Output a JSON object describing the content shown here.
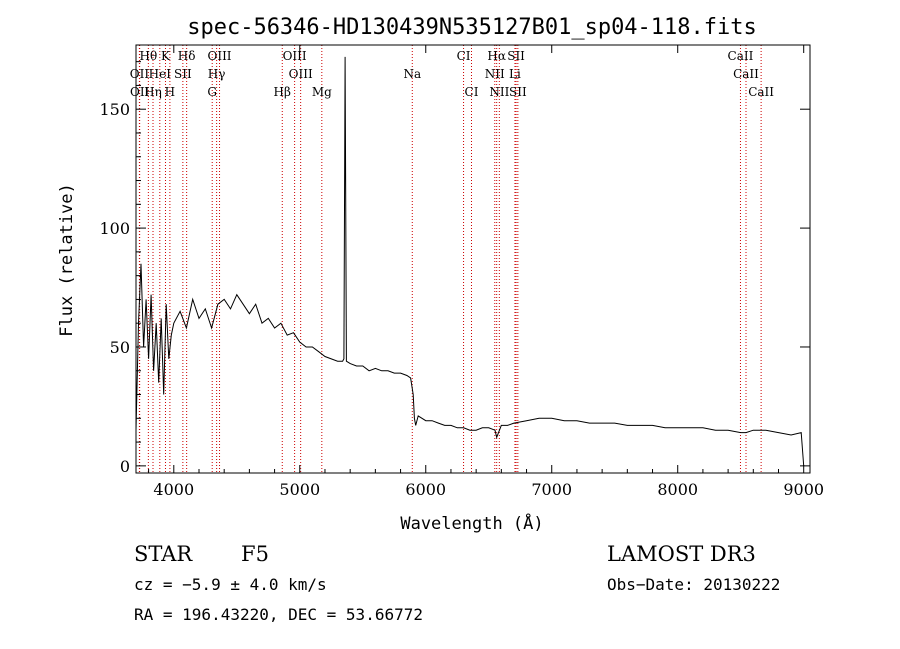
{
  "chart_data": {
    "type": "line",
    "title": "spec-56346-HD130439N535127B01_sp04-118.fits",
    "xlabel": "Wavelength (Å)",
    "ylabel": "Flux (relative)",
    "xlim": [
      3700,
      9050
    ],
    "ylim": [
      -3,
      177
    ],
    "x_ticks": [
      4000,
      5000,
      6000,
      7000,
      8000,
      9000
    ],
    "y_ticks": [
      0,
      50,
      100,
      150
    ],
    "grid": false,
    "series": [
      {
        "x": [
          3700,
          3720,
          3740,
          3760,
          3780,
          3800,
          3820,
          3840,
          3860,
          3880,
          3900,
          3920,
          3940,
          3960,
          3980,
          4000,
          4050,
          4100,
          4150,
          4200,
          4250,
          4300,
          4350,
          4400,
          4450,
          4500,
          4550,
          4600,
          4650,
          4700,
          4750,
          4800,
          4850,
          4900,
          4950,
          5000,
          5050,
          5100,
          5150,
          5200,
          5250,
          5300,
          5340,
          5350,
          5360,
          5370,
          5400,
          5450,
          5500,
          5550,
          5600,
          5650,
          5700,
          5750,
          5800,
          5850,
          5880,
          5900,
          5910,
          5920,
          5940,
          6000,
          6050,
          6100,
          6150,
          6200,
          6250,
          6300,
          6350,
          6400,
          6450,
          6500,
          6550,
          6563,
          6600,
          6650,
          6700,
          6800,
          6900,
          7000,
          7100,
          7200,
          7300,
          7400,
          7500,
          7600,
          7700,
          7800,
          7900,
          8000,
          8100,
          8200,
          8300,
          8400,
          8500,
          8542,
          8600,
          8700,
          8800,
          8900,
          8980,
          9000
        ],
        "y": [
          15,
          60,
          85,
          50,
          70,
          45,
          72,
          40,
          60,
          35,
          62,
          30,
          68,
          45,
          55,
          60,
          65,
          58,
          70,
          62,
          66,
          58,
          68,
          70,
          66,
          72,
          68,
          64,
          68,
          60,
          62,
          58,
          60,
          55,
          56,
          52,
          50,
          50,
          48,
          46,
          45,
          44,
          44,
          45,
          172,
          44,
          43,
          42,
          42,
          40,
          41,
          40,
          40,
          39,
          39,
          38,
          37,
          30,
          20,
          17,
          21,
          19,
          19,
          18,
          17,
          17,
          16,
          16,
          15,
          15,
          16,
          16,
          15,
          12,
          17,
          17,
          18,
          19,
          20,
          20,
          19,
          19,
          18,
          18,
          18,
          17,
          17,
          17,
          16,
          16,
          16,
          16,
          15,
          15,
          14,
          14,
          15,
          15,
          14,
          13,
          14,
          0
        ]
      }
    ],
    "line_labels": [
      {
        "name": "Hθ",
        "x": 3798,
        "row": 0
      },
      {
        "name": "K",
        "x": 3934,
        "row": 0
      },
      {
        "name": "Hδ",
        "x": 4102,
        "row": 0
      },
      {
        "name": "OIII",
        "x": 4363,
        "row": 0
      },
      {
        "name": "OIII",
        "x": 4959,
        "row": 0
      },
      {
        "name": "CI",
        "x": 6300,
        "row": 0
      },
      {
        "name": "Hα",
        "x": 6563,
        "row": 0
      },
      {
        "name": "SII",
        "x": 6717,
        "row": 0
      },
      {
        "name": "CaII",
        "x": 8498,
        "row": 0
      },
      {
        "name": "OII",
        "x": 3727,
        "row": 1
      },
      {
        "name": "HeI",
        "x": 3889,
        "row": 1
      },
      {
        "name": "SII",
        "x": 4072,
        "row": 1
      },
      {
        "name": "Hγ",
        "x": 4340,
        "row": 1
      },
      {
        "name": "OIII",
        "x": 5007,
        "row": 1
      },
      {
        "name": "Na",
        "x": 5893,
        "row": 1
      },
      {
        "name": "NII",
        "x": 6548,
        "row": 1
      },
      {
        "name": "Li",
        "x": 6708,
        "row": 1
      },
      {
        "name": "CaII",
        "x": 8542,
        "row": 1
      },
      {
        "name": "OII",
        "x": 3729,
        "row": 2
      },
      {
        "name": "Hη",
        "x": 3835,
        "row": 2
      },
      {
        "name": "H",
        "x": 3969,
        "row": 2
      },
      {
        "name": "G",
        "x": 4305,
        "row": 2
      },
      {
        "name": "Hβ",
        "x": 4861,
        "row": 2
      },
      {
        "name": "Mg",
        "x": 5175,
        "row": 2
      },
      {
        "name": "CI",
        "x": 6363,
        "row": 2
      },
      {
        "name": "NII",
        "x": 6584,
        "row": 2
      },
      {
        "name": "SII",
        "x": 6731,
        "row": 2
      },
      {
        "name": "CaII",
        "x": 8662,
        "row": 2
      }
    ]
  },
  "footer": {
    "object_class": "STAR",
    "subclass": "F5",
    "survey": "LAMOST DR3",
    "cz": "cz = −5.9 ± 4.0 km/s",
    "obs_date": "Obs−Date: 20130222",
    "coords": "RA = 196.43220, DEC =  53.66772"
  },
  "colors": {
    "axis": "#000000",
    "spectrum": "#000000",
    "line_marker": "#cc0000"
  }
}
